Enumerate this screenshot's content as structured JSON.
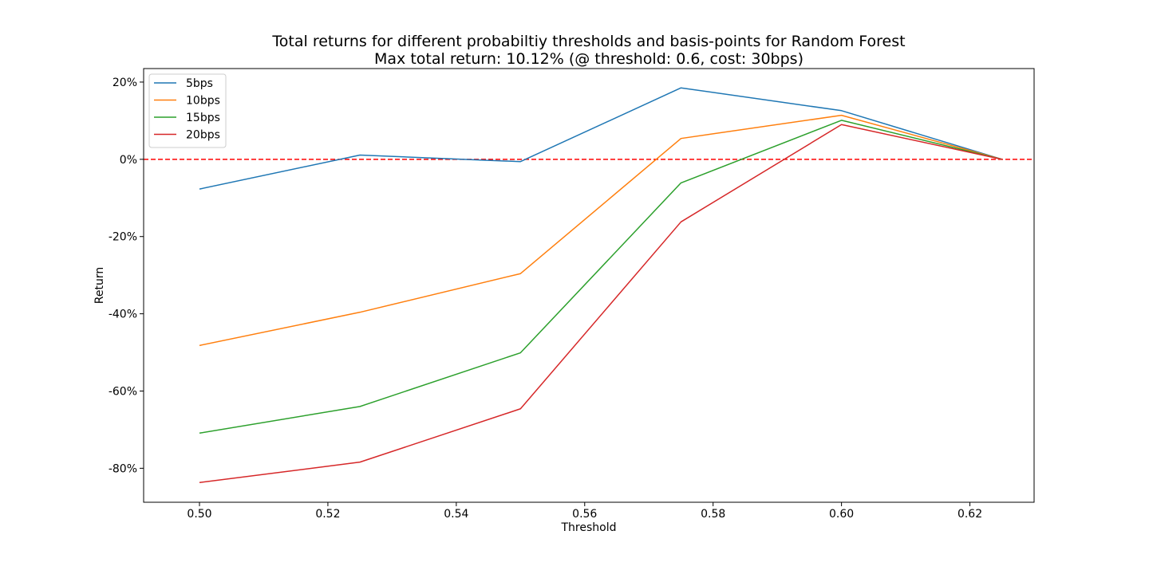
{
  "chart_data": {
    "type": "line",
    "title": "Total returns for different probabiltiy thresholds and basis-points for Random Forest",
    "subtitle": "Max total return: 10.12% (@ threshold: 0.6, cost: 30bps)",
    "xlabel": "Threshold",
    "ylabel": "Return",
    "xlim": [
      0.4913,
      0.63
    ],
    "ylim": [
      -88.8,
      23.5
    ],
    "x_ticks": [
      0.5,
      0.52,
      0.54,
      0.56,
      0.58,
      0.6,
      0.62
    ],
    "x_tick_labels": [
      "0.50",
      "0.52",
      "0.54",
      "0.56",
      "0.58",
      "0.60",
      "0.62"
    ],
    "y_ticks": [
      20,
      0,
      -20,
      -40,
      -60,
      -80
    ],
    "y_tick_labels": [
      "20%",
      "0%",
      "-20%",
      "-40%",
      "-60%",
      "-80%"
    ],
    "x": [
      0.5,
      0.525,
      0.55,
      0.575,
      0.6,
      0.625
    ],
    "series": [
      {
        "name": "5bps",
        "color": "#1f77b4",
        "values": [
          -7.7,
          1.1,
          -0.6,
          18.5,
          12.6,
          0.0
        ]
      },
      {
        "name": "10bps",
        "color": "#ff7f0e",
        "values": [
          -48.2,
          -39.6,
          -29.6,
          5.4,
          11.4,
          0.0
        ]
      },
      {
        "name": "15bps",
        "color": "#2ca02c",
        "values": [
          -70.9,
          -64.0,
          -50.1,
          -6.1,
          10.1,
          0.0
        ]
      },
      {
        "name": "20bps",
        "color": "#d62728",
        "values": [
          -83.7,
          -78.4,
          -64.6,
          -16.2,
          9.0,
          0.0
        ]
      }
    ],
    "reference_line": {
      "y": 0,
      "color": "#ff0000",
      "style": "dashed"
    },
    "grid": false,
    "legend_position": "top-left"
  }
}
